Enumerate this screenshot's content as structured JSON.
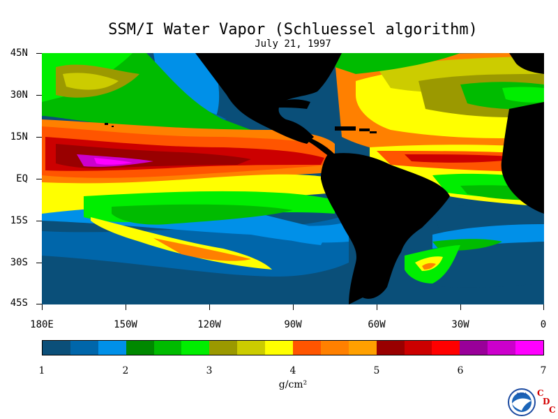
{
  "title": "SSM/I Water Vapor (Schluessel algorithm)",
  "subtitle": "July 21, 1997",
  "lat_labels": [
    "45N",
    "30N",
    "15N",
    "EQ",
    "15S",
    "30S",
    "45S"
  ],
  "lon_labels": [
    "180E",
    "150W",
    "120W",
    "90W",
    "60W",
    "30W",
    "0"
  ],
  "colorbar": {
    "colors": [
      "#0b4f79",
      "#0066aa",
      "#0090e8",
      "#008800",
      "#00bb00",
      "#00ee00",
      "#9b9900",
      "#cccc00",
      "#ffff00",
      "#ff5500",
      "#ff8000",
      "#ffa000",
      "#990000",
      "#cc0000",
      "#ff0000",
      "#990099",
      "#cc00cc",
      "#ff00ff"
    ],
    "tick_labels": [
      "1",
      "2",
      "3",
      "4",
      "5",
      "6",
      "7"
    ],
    "range": [
      1,
      7
    ]
  },
  "unit": "g/cm²",
  "logo": {
    "agency": "NOAA",
    "mark": "CDC",
    "mark_letters": [
      "C",
      "D",
      "C"
    ]
  },
  "map_legend": {
    "land": "#000000",
    "ocean_base": "#0a4f79"
  }
}
